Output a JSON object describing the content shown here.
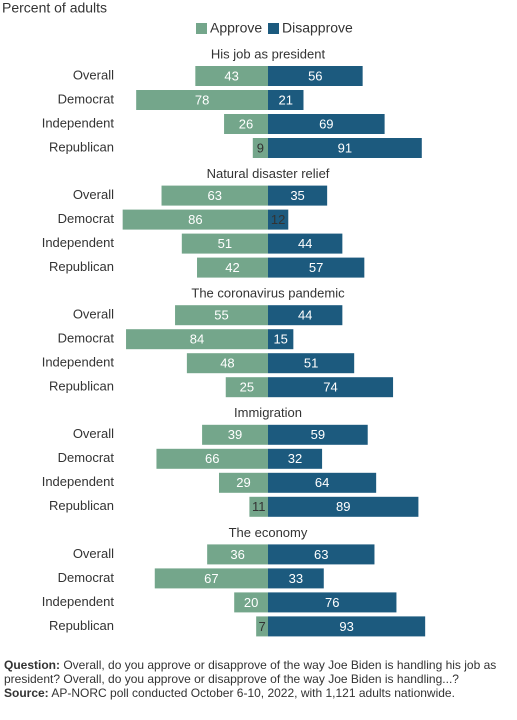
{
  "chart_data": {
    "type": "bar",
    "subtitle": "Percent of adults",
    "series": [
      {
        "name": "Approve",
        "color": "#74a68b"
      },
      {
        "name": "Disapprove",
        "color": "#1c5a7e"
      }
    ],
    "panels": [
      {
        "title": "His job as president",
        "categories": [
          "Overall",
          "Democrat",
          "Independent",
          "Republican"
        ],
        "series": [
          [
            43,
            78,
            26,
            9
          ],
          [
            56,
            21,
            69,
            91
          ]
        ]
      },
      {
        "title": "Natural disaster relief",
        "categories": [
          "Overall",
          "Democrat",
          "Independent",
          "Republican"
        ],
        "series": [
          [
            63,
            86,
            51,
            42
          ],
          [
            35,
            12,
            44,
            57
          ]
        ]
      },
      {
        "title": "The coronavirus pandemic",
        "categories": [
          "Overall",
          "Democrat",
          "Independent",
          "Republican"
        ],
        "series": [
          [
            55,
            84,
            48,
            25
          ],
          [
            44,
            15,
            51,
            74
          ]
        ]
      },
      {
        "title": "Immigration",
        "categories": [
          "Overall",
          "Democrat",
          "Independent",
          "Republican"
        ],
        "series": [
          [
            39,
            66,
            29,
            11
          ],
          [
            59,
            32,
            64,
            89
          ]
        ]
      },
      {
        "title": "The economy",
        "categories": [
          "Overall",
          "Democrat",
          "Independent",
          "Republican"
        ],
        "series": [
          [
            36,
            67,
            20,
            7
          ],
          [
            63,
            33,
            76,
            93
          ]
        ]
      }
    ]
  },
  "footer": {
    "question_label": "Question:",
    "question": "Overall, do you approve or disapprove of the way Joe Biden is handling his job as president? Overall, do you approve or disapprove of the way Joe Biden is handling...?",
    "source_label": "Source:",
    "source": "AP-NORC poll conducted October 6-10, 2022, with 1,121 adults nationwide."
  }
}
